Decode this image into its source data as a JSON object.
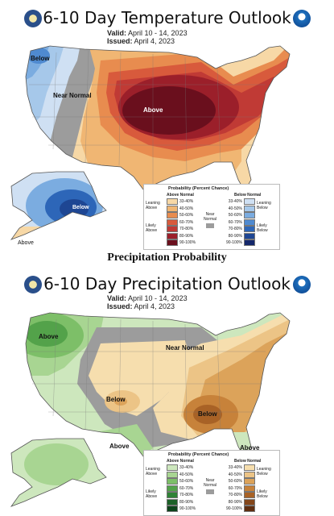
{
  "temperature": {
    "title": "6-10 Day Temperature Outlook",
    "valid_label": "Valid:",
    "valid_value": "April 10 - 14, 2023",
    "issued_label": "Issued:",
    "issued_value": "April 4, 2023",
    "map_labels": {
      "below_nw": "Below",
      "near_normal": "Near Normal",
      "above": "Above",
      "below_ak": "Below",
      "above_ak": "Above"
    },
    "legend": {
      "title": "Probability (Percent Chance)",
      "col_above": "Above Normal",
      "col_below": "Below Normal",
      "leaning_above": "Leaning Above",
      "likely_above": "Likely Above",
      "near_normal": "Near Normal",
      "leaning_below": "Leaning Below",
      "likely_below": "Likely Below",
      "bins": [
        "33-40%",
        "40-50%",
        "50-60%",
        "60-70%",
        "70-80%",
        "80-90%",
        "90-100%"
      ],
      "above_colors": [
        "#f7d8a6",
        "#f0b673",
        "#e88c4f",
        "#d85a3c",
        "#c03a35",
        "#9b1f2a",
        "#6a0f1d"
      ],
      "below_colors": [
        "#cfe0f3",
        "#a6c8ea",
        "#7bace0",
        "#4f8ad0",
        "#2d66b8",
        "#1e4693",
        "#14276b"
      ],
      "near_color": "#9c9c9c"
    }
  },
  "section_heading": "Precipitation Probability",
  "precipitation": {
    "title": "6-10 Day Precipitation Outlook",
    "valid_label": "Valid:",
    "valid_value": "April 10 - 14, 2023",
    "issued_label": "Issued:",
    "issued_value": "April 4, 2023",
    "map_labels": {
      "above_nw": "Above",
      "near_normal": "Near Normal",
      "below_central": "Below",
      "below_se": "Below",
      "above_sw": "Above",
      "above_fl": "Above"
    },
    "legend": {
      "title": "Probability (Percent Chance)",
      "col_above": "Above Normal",
      "col_below": "Below Normal",
      "leaning_above": "Leaning Above",
      "likely_above": "Likely Above",
      "near_normal": "Near Normal",
      "leaning_below": "Leaning Below",
      "likely_below": "Likely Below",
      "bins": [
        "33-40%",
        "40-50%",
        "50-60%",
        "60-70%",
        "70-80%",
        "80-90%",
        "90-100%"
      ],
      "above_colors": [
        "#cde7bd",
        "#a8d592",
        "#7dbf68",
        "#53a24a",
        "#2f8236",
        "#1c6128",
        "#0c431a"
      ],
      "below_colors": [
        "#f6deae",
        "#ecc486",
        "#dca35a",
        "#c7823a",
        "#a86226",
        "#84461a",
        "#5e2d0f"
      ],
      "near_color": "#9c9c9c"
    }
  }
}
